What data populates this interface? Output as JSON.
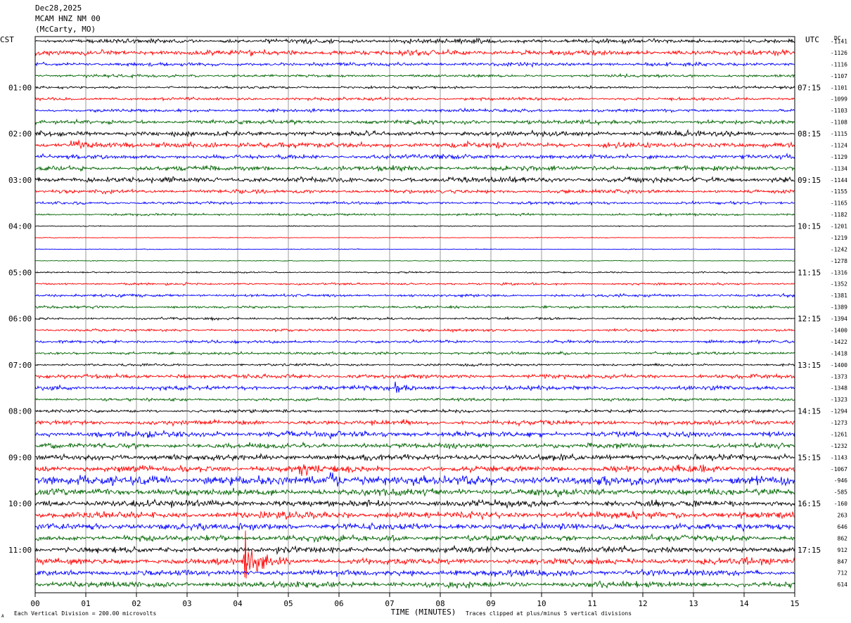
{
  "header": {
    "date": "Dec28,2025",
    "station": "MCAM HNZ NM 00",
    "location": "(McCarty, MO)"
  },
  "footer": {
    "scale_note": "Each Vertical Division =  200.00 microvolts",
    "clip_note": "Traces clipped at plus/minus 5 vertical divisions",
    "corner_mark": "A"
  },
  "colors": {
    "trace_cycle": [
      "#000000",
      "#ff0000",
      "#0000ff",
      "#006400"
    ],
    "grid": "#808080"
  },
  "chart_data": {
    "type": "line",
    "subtype": "helicorder",
    "xlabel": "TIME (MINUTES)",
    "x_ticks": [
      "00",
      "01",
      "02",
      "03",
      "04",
      "05",
      "06",
      "07",
      "08",
      "09",
      "10",
      "11",
      "12",
      "13",
      "14",
      "15"
    ],
    "xlim": [
      0,
      15
    ],
    "left_axis_title": "CST",
    "right_axis_title": "UTC",
    "dc_title": "DC",
    "left_hour_labels": [
      "01:00",
      "02:00",
      "03:00",
      "04:00",
      "05:00",
      "06:00",
      "07:00",
      "08:00",
      "09:00",
      "10:00",
      "11:00"
    ],
    "right_hour_labels": [
      "07:15",
      "08:15",
      "09:15",
      "10:15",
      "11:15",
      "12:15",
      "13:15",
      "14:15",
      "15:15",
      "16:15",
      "17:15"
    ],
    "hour_label_rows": [
      4,
      8,
      12,
      16,
      20,
      24,
      28,
      32,
      36,
      40,
      44
    ],
    "dc_offsets": [
      "-1141",
      "-1126",
      "-1116",
      "-1107",
      "-1101",
      "-1099",
      "-1103",
      "-1108",
      "-1115",
      "-1124",
      "-1129",
      "-1134",
      "-1144",
      "-1155",
      "-1165",
      "-1182",
      "-1201",
      "-1219",
      "-1242",
      "-1278",
      "-1316",
      "-1352",
      "-1381",
      "-1389",
      "-1394",
      "-1400",
      "-1422",
      "-1418",
      "-1400",
      "-1373",
      "-1348",
      "-1323",
      "-1294",
      "-1273",
      "-1261",
      "-1232",
      "-1143",
      "-1067",
      "-946",
      "-585",
      "-160",
      "263",
      "646",
      "862",
      "912",
      "847",
      "712",
      "614"
    ],
    "row_amplitude": [
      2.2,
      2.6,
      1.8,
      1.4,
      1.3,
      1.5,
      1.6,
      2.0,
      2.6,
      2.8,
      2.2,
      2.4,
      2.6,
      1.8,
      1.4,
      1.2,
      0.5,
      0.4,
      0.4,
      0.4,
      0.8,
      1.1,
      1.4,
      1.3,
      1.2,
      1.3,
      1.5,
      1.4,
      1.2,
      2.0,
      2.1,
      1.4,
      1.6,
      2.4,
      3.0,
      2.6,
      3.0,
      3.2,
      4.6,
      3.4,
      3.2,
      3.4,
      3.2,
      3.0,
      3.0,
      3.2,
      3.0,
      3.0
    ],
    "events": [
      {
        "row": 9,
        "minute": 0.7,
        "amplitude": 6
      },
      {
        "row": 30,
        "minute": 7.1,
        "amplitude": 5
      },
      {
        "row": 37,
        "minute": 5.2,
        "amplitude": 7
      },
      {
        "row": 38,
        "minute": 5.8,
        "amplitude": 9
      },
      {
        "row": 45,
        "minute": 4.15,
        "amplitude": 30
      }
    ],
    "trace_seconds": 900,
    "rows": 48
  }
}
